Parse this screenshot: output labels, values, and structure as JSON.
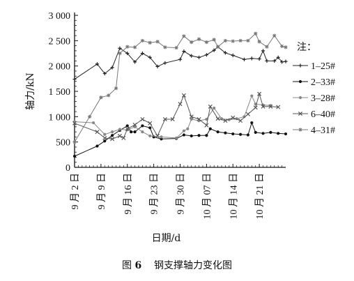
{
  "caption": {
    "label": "图",
    "number": "6",
    "title": "钢支撑轴力变化图"
  },
  "chart_data": {
    "type": "line",
    "title": "",
    "ylabel": "轴力/kN",
    "xlabel": "日期/d",
    "ylim": [
      0,
      3000
    ],
    "yticks": [
      0,
      500,
      1000,
      1500,
      2000,
      2500,
      3000
    ],
    "ytick_labels": [
      "0",
      "500",
      "1 000",
      "1 500",
      "2 000",
      "2 500",
      "3 000"
    ],
    "xlim": [
      0,
      56
    ],
    "xticks": [
      0,
      7,
      14,
      21,
      28,
      35,
      42,
      49
    ],
    "xtick_labels": [
      "9 月 2 日",
      "9 月 9 日",
      "9 月 16 日",
      "9 月 23 日",
      "9 月 30 日",
      "10 月 07 日",
      "10 月 14 日",
      "10 月 21 日"
    ],
    "grid": false,
    "legend_title": "注：",
    "legend_position": "right",
    "series": [
      {
        "name": "1–25#",
        "color": "#222222",
        "marker": "plus",
        "points": [
          [
            0,
            1740
          ],
          [
            6,
            2040
          ],
          [
            8,
            1850
          ],
          [
            10,
            1970
          ],
          [
            12,
            2350
          ],
          [
            14,
            2250
          ],
          [
            16,
            2080
          ],
          [
            18,
            2250
          ],
          [
            20,
            2170
          ],
          [
            22,
            1990
          ],
          [
            24,
            2060
          ],
          [
            28,
            2130
          ],
          [
            29,
            2290
          ],
          [
            31,
            2200
          ],
          [
            33,
            2170
          ],
          [
            35,
            2220
          ],
          [
            37,
            2310
          ],
          [
            38,
            2380
          ],
          [
            40,
            2260
          ],
          [
            42,
            2210
          ],
          [
            45,
            2130
          ],
          [
            47,
            2150
          ],
          [
            49,
            2140
          ],
          [
            50,
            2300
          ],
          [
            51,
            2100
          ],
          [
            53,
            2100
          ],
          [
            54,
            2170
          ],
          [
            55,
            2080
          ],
          [
            56,
            2090
          ]
        ]
      },
      {
        "name": "2–33#",
        "color": "#111111",
        "marker": "dot",
        "points": [
          [
            0,
            220
          ],
          [
            6,
            420
          ],
          [
            8,
            520
          ],
          [
            10,
            630
          ],
          [
            12,
            730
          ],
          [
            14,
            820
          ],
          [
            15,
            700
          ],
          [
            16,
            700
          ],
          [
            18,
            820
          ],
          [
            20,
            780
          ],
          [
            21,
            600
          ],
          [
            23,
            560
          ],
          [
            27,
            570
          ],
          [
            29,
            640
          ],
          [
            31,
            620
          ],
          [
            33,
            630
          ],
          [
            35,
            630
          ],
          [
            36,
            760
          ],
          [
            38,
            700
          ],
          [
            40,
            680
          ],
          [
            42,
            660
          ],
          [
            44,
            650
          ],
          [
            46,
            640
          ],
          [
            47,
            880
          ],
          [
            48,
            690
          ],
          [
            50,
            670
          ],
          [
            52,
            690
          ],
          [
            54,
            670
          ],
          [
            56,
            660
          ]
        ]
      },
      {
        "name": "3–28#",
        "color": "#888888",
        "marker": "dot",
        "points": [
          [
            0,
            900
          ],
          [
            5,
            880
          ],
          [
            8,
            650
          ],
          [
            10,
            700
          ],
          [
            12,
            750
          ],
          [
            14,
            740
          ],
          [
            16,
            800
          ],
          [
            18,
            700
          ],
          [
            20,
            620
          ],
          [
            23,
            600
          ],
          [
            27,
            580
          ],
          [
            29,
            720
          ],
          [
            30,
            760
          ],
          [
            31,
            950
          ],
          [
            33,
            920
          ],
          [
            35,
            950
          ],
          [
            37,
            1170
          ],
          [
            39,
            960
          ],
          [
            41,
            940
          ],
          [
            43,
            960
          ],
          [
            45,
            1000
          ],
          [
            47,
            1410
          ],
          [
            48,
            1250
          ],
          [
            50,
            1230
          ],
          [
            52,
            1220
          ]
        ]
      },
      {
        "name": "6–40#",
        "color": "#555555",
        "marker": "cross",
        "points": [
          [
            0,
            870
          ],
          [
            6,
            700
          ],
          [
            8,
            580
          ],
          [
            10,
            560
          ],
          [
            12,
            620
          ],
          [
            13,
            580
          ],
          [
            14,
            760
          ],
          [
            16,
            840
          ],
          [
            18,
            950
          ],
          [
            20,
            870
          ],
          [
            22,
            620
          ],
          [
            24,
            950
          ],
          [
            26,
            950
          ],
          [
            28,
            1250
          ],
          [
            29,
            1420
          ],
          [
            31,
            1000
          ],
          [
            33,
            950
          ],
          [
            35,
            830
          ],
          [
            36,
            1200
          ],
          [
            38,
            960
          ],
          [
            40,
            920
          ],
          [
            42,
            980
          ],
          [
            44,
            920
          ],
          [
            46,
            1050
          ],
          [
            48,
            1180
          ],
          [
            49,
            1450
          ],
          [
            50,
            1200
          ],
          [
            52,
            1200
          ],
          [
            54,
            1190
          ]
        ]
      },
      {
        "name": "4–31#",
        "color": "#777777",
        "marker": "star",
        "points": [
          [
            0,
            500
          ],
          [
            4,
            1000
          ],
          [
            7,
            1380
          ],
          [
            9,
            1420
          ],
          [
            11,
            1560
          ],
          [
            12,
            2250
          ],
          [
            14,
            2380
          ],
          [
            16,
            2370
          ],
          [
            18,
            2500
          ],
          [
            20,
            2460
          ],
          [
            22,
            2480
          ],
          [
            24,
            2370
          ],
          [
            27,
            2360
          ],
          [
            29,
            2590
          ],
          [
            31,
            2470
          ],
          [
            33,
            2530
          ],
          [
            35,
            2470
          ],
          [
            37,
            2520
          ],
          [
            38,
            2380
          ],
          [
            40,
            2500
          ],
          [
            42,
            2490
          ],
          [
            44,
            2500
          ],
          [
            46,
            2500
          ],
          [
            48,
            2640
          ],
          [
            49,
            2480
          ],
          [
            51,
            2380
          ],
          [
            53,
            2600
          ],
          [
            55,
            2390
          ],
          [
            56,
            2370
          ]
        ]
      }
    ]
  }
}
